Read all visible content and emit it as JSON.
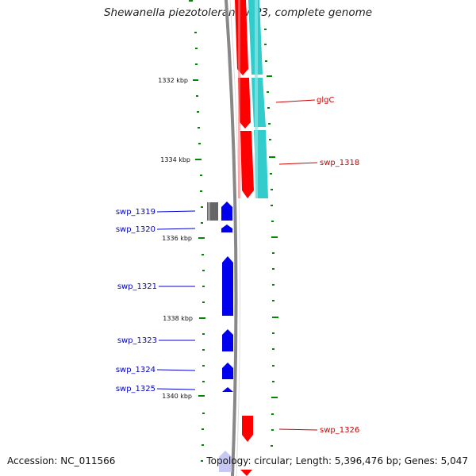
{
  "title": "Shewanella piezotolerans WP3, complete genome",
  "footer": {
    "accession": "Accession: NC_011566",
    "topology": "Topology: circular; Length: 5,396,476 bp; Genes: 5,047"
  },
  "scale_labels": [
    "1332 kbp",
    "1334 kbp",
    "1336 kbp",
    "1338 kbp",
    "1340 kbp"
  ],
  "gene_labels_forward": [
    "glgC",
    "swp_1318",
    "swp_1326"
  ],
  "gene_labels_reverse": [
    "swp_1319",
    "swp_1320",
    "swp_1321",
    "swp_1323",
    "swp_1324",
    "swp_1325"
  ],
  "colors": {
    "forward_cds": "#ff0000",
    "forward_track": "#33cccc",
    "reverse_cds": "#0000ee",
    "other_feature": "#666666",
    "tick": "#008800",
    "backbone": "#888888"
  }
}
